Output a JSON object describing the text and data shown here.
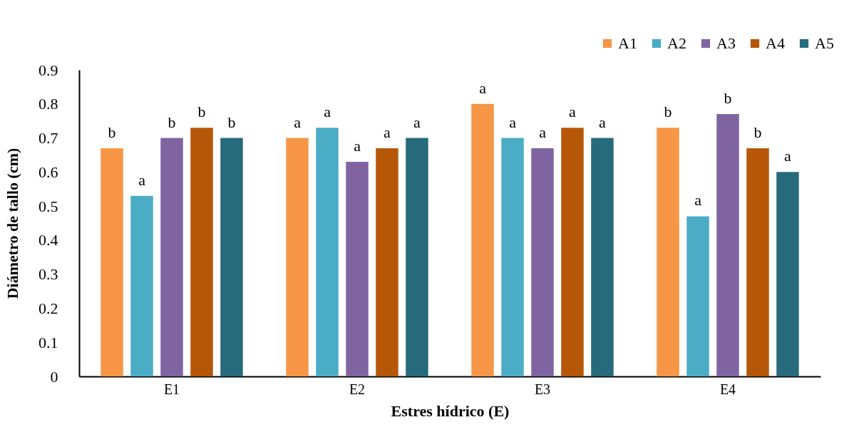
{
  "chart_data": {
    "type": "bar",
    "xlabel": "Estres hídrico (E)",
    "ylabel": "Diámetro de tallo (cm)",
    "categories": [
      "E1",
      "E2",
      "E3",
      "E4"
    ],
    "series": [
      {
        "name": "A1",
        "color": "#f79646",
        "values": [
          0.67,
          0.7,
          0.8,
          0.73
        ],
        "value_labels": [
          "b",
          "a",
          "a",
          "b"
        ]
      },
      {
        "name": "A2",
        "color": "#4bacc6",
        "values": [
          0.53,
          0.73,
          0.7,
          0.47
        ],
        "value_labels": [
          "a",
          "a",
          "a",
          "a"
        ]
      },
      {
        "name": "A3",
        "color": "#8064a2",
        "values": [
          0.7,
          0.63,
          0.67,
          0.77
        ],
        "value_labels": [
          "b",
          "a",
          "a",
          "b"
        ]
      },
      {
        "name": "A4",
        "color": "#b65708",
        "values": [
          0.73,
          0.67,
          0.73,
          0.67
        ],
        "value_labels": [
          "b",
          "a",
          "a",
          "b"
        ]
      },
      {
        "name": "A5",
        "color": "#276a7c",
        "values": [
          0.7,
          0.7,
          0.7,
          0.6
        ],
        "value_labels": [
          "b",
          "a",
          "a",
          "a"
        ]
      }
    ],
    "ylim": [
      0,
      0.9
    ],
    "yticks": [
      {
        "value": 0,
        "label": "0"
      },
      0.1,
      0.2,
      0.3,
      0.4,
      0.5,
      0.6,
      0.7,
      0.8,
      0.9
    ],
    "grid": false,
    "legend": "top right"
  }
}
